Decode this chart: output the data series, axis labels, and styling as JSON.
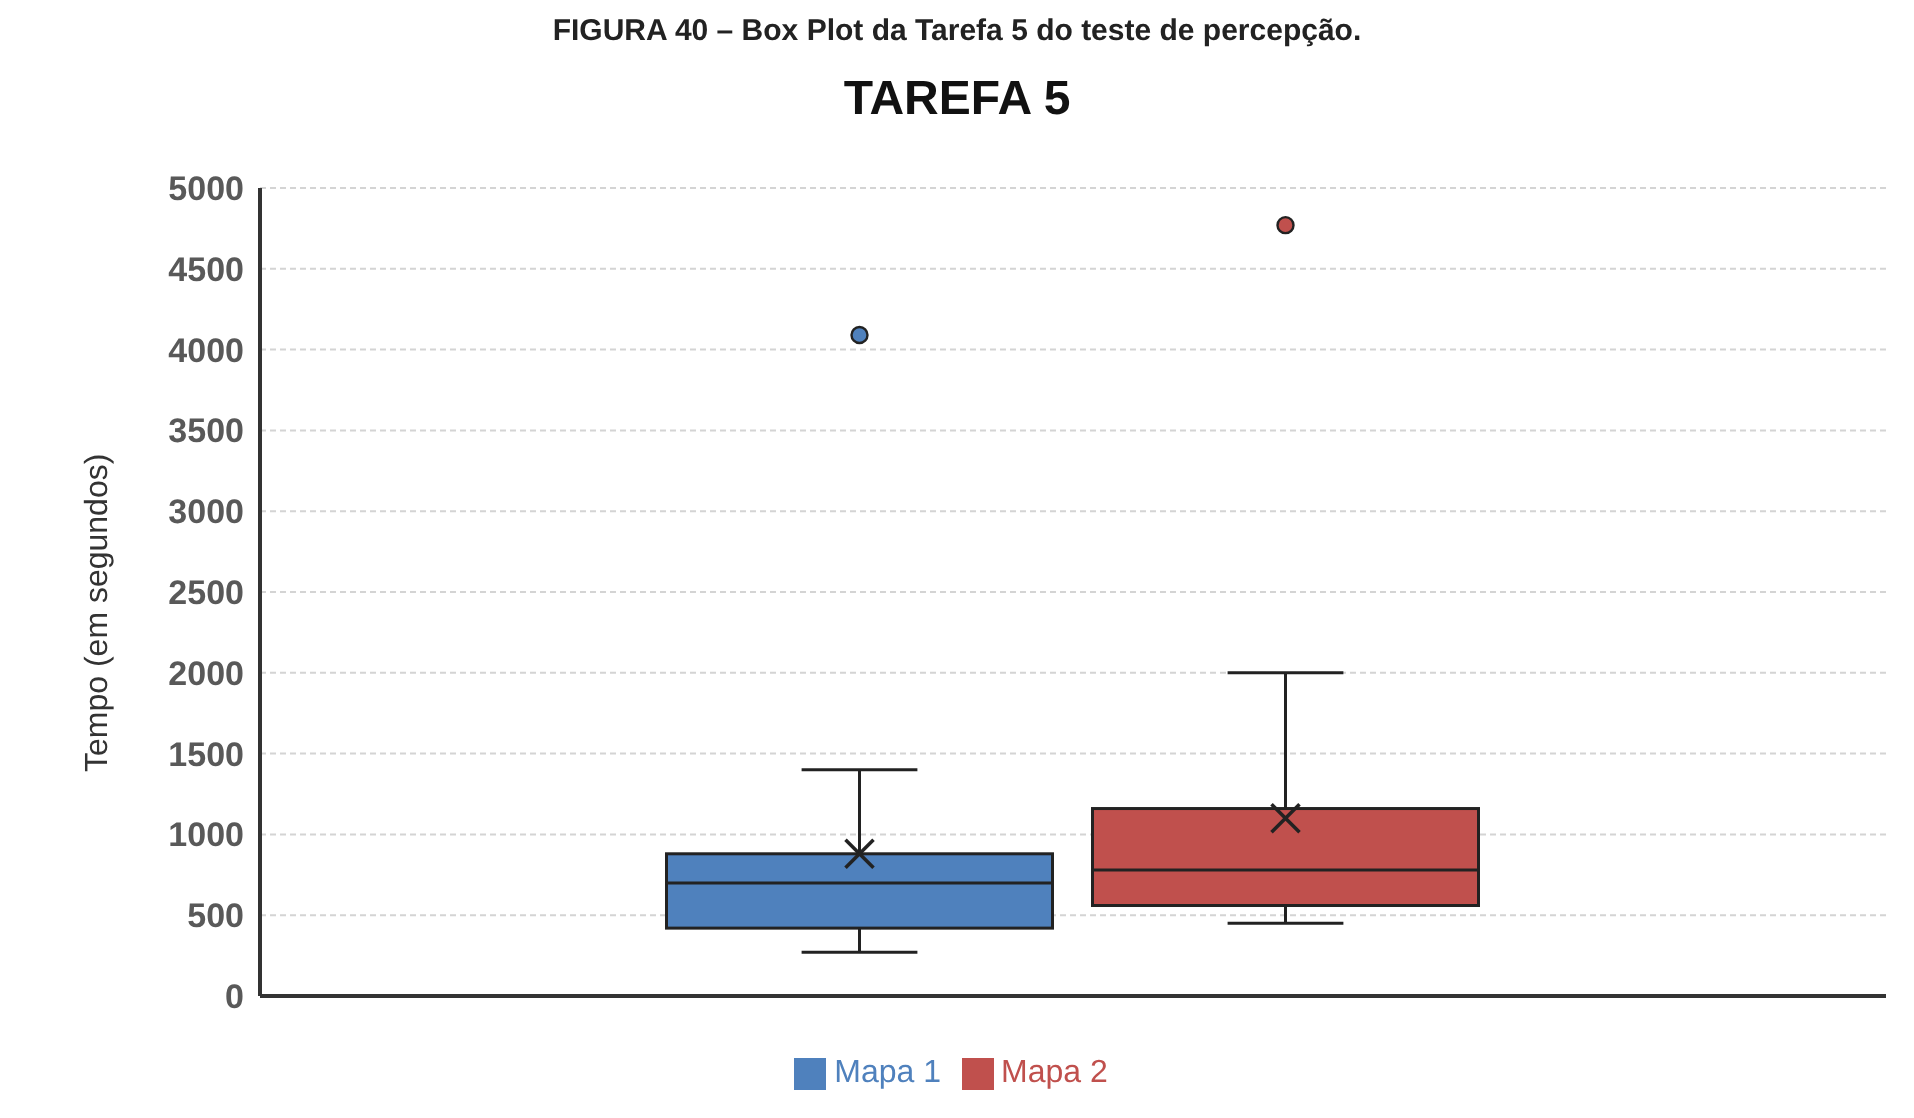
{
  "chart_data": {
    "type": "box",
    "title": "TAREFA 5",
    "annotations": [
      "FIGURA 40 – Box Plot da Tarefa 5 do teste de percepção."
    ],
    "ylabel": "Tempo (em segundos)",
    "categories": [
      null
    ],
    "series": [
      {
        "name": "Mapa 1",
        "color": "#4f81bd",
        "boxes": [
          {
            "low": 270,
            "q1": 420,
            "median": 700,
            "q3": 880,
            "high": 1400,
            "mean": 880,
            "outliers": [
              4090
            ]
          }
        ]
      },
      {
        "name": "Mapa 2",
        "color": "#c0504d",
        "boxes": [
          {
            "low": 450,
            "q1": 560,
            "median": 780,
            "q3": 1160,
            "high": 2000,
            "mean": 1100,
            "outliers": [
              4770
            ]
          }
        ]
      }
    ],
    "ylim": [
      0,
      5000
    ],
    "yticks": [
      0,
      500,
      1000,
      1500,
      2000,
      2500,
      3000,
      3500,
      4000,
      4500,
      5000
    ],
    "grid": "y",
    "legend": "bottom"
  }
}
